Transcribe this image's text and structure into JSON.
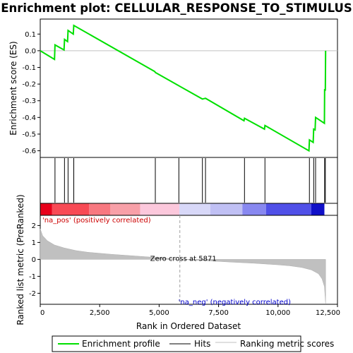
{
  "chart_data": {
    "type": "line",
    "title": "Enrichment plot: CELLULAR_RESPONSE_TO_STIMULUS",
    "enrichment_panel": {
      "ylabel": "Enrichment score (ES)",
      "ylim": [
        -0.64,
        0.19
      ],
      "yticks": [
        "0.1",
        "0.0",
        "-0.1",
        "-0.2",
        "-0.3",
        "-0.4",
        "-0.5",
        "-0.6"
      ],
      "ytick_values": [
        0.1,
        0.0,
        -0.1,
        -0.2,
        -0.3,
        -0.4,
        -0.5,
        -0.6
      ],
      "series_name": "Enrichment profile",
      "color": "#00e000",
      "points": [
        [
          0,
          0.0
        ],
        [
          600,
          -0.052
        ],
        [
          620,
          0.035
        ],
        [
          1000,
          0.005
        ],
        [
          1020,
          0.068
        ],
        [
          1150,
          0.055
        ],
        [
          1170,
          0.122
        ],
        [
          1390,
          0.1
        ],
        [
          1410,
          0.152
        ],
        [
          4820,
          -0.125
        ],
        [
          4840,
          -0.13
        ],
        [
          5830,
          -0.21
        ],
        [
          6820,
          -0.29
        ],
        [
          6950,
          -0.285
        ],
        [
          8570,
          -0.42
        ],
        [
          8590,
          -0.405
        ],
        [
          9430,
          -0.47
        ],
        [
          9450,
          -0.448
        ],
        [
          11300,
          -0.6
        ],
        [
          11320,
          -0.535
        ],
        [
          11480,
          -0.55
        ],
        [
          11500,
          -0.47
        ],
        [
          11560,
          -0.475
        ],
        [
          11580,
          -0.4
        ],
        [
          11950,
          -0.435
        ],
        [
          11960,
          -0.23
        ],
        [
          11990,
          -0.24
        ],
        [
          12000,
          0.0
        ]
      ]
    },
    "hits": [
      620,
      1020,
      1170,
      1410,
      4840,
      5830,
      6820,
      6950,
      8590,
      9450,
      11320,
      11500,
      11580,
      11960,
      11990
    ],
    "ranking_bar": {
      "segments": [
        {
          "from": 0,
          "to": 500,
          "color": "#e8001a"
        },
        {
          "from": 500,
          "to": 2050,
          "color": "#f84a55"
        },
        {
          "from": 2050,
          "to": 2950,
          "color": "#f87880"
        },
        {
          "from": 2950,
          "to": 4200,
          "color": "#f8a0a8"
        },
        {
          "from": 4200,
          "to": 5850,
          "color": "#fcc8dc"
        },
        {
          "from": 5850,
          "to": 7150,
          "color": "#d8d8f8"
        },
        {
          "from": 7150,
          "to": 8500,
          "color": "#c0c0f4"
        },
        {
          "from": 8500,
          "to": 9500,
          "color": "#8888f0"
        },
        {
          "from": 9500,
          "to": 11400,
          "color": "#5050e8"
        },
        {
          "from": 11400,
          "to": 11950,
          "color": "#1010c8"
        }
      ]
    },
    "ranking_panel": {
      "ylabel": "Ranked list metric (PreRanked)",
      "ylim": [
        -2.65,
        2.6
      ],
      "yticks": [
        "2",
        "1",
        "0",
        "-1",
        "-2"
      ],
      "ytick_values": [
        2,
        1,
        0,
        -1,
        -2
      ],
      "profile": [
        [
          0,
          1.8
        ],
        [
          100,
          1.4
        ],
        [
          300,
          1.1
        ],
        [
          600,
          0.85
        ],
        [
          1000,
          0.68
        ],
        [
          1500,
          0.52
        ],
        [
          2000,
          0.42
        ],
        [
          3000,
          0.3
        ],
        [
          4000,
          0.2
        ],
        [
          5000,
          0.1
        ],
        [
          5871,
          0.0
        ],
        [
          7000,
          -0.08
        ],
        [
          8000,
          -0.16
        ],
        [
          9000,
          -0.23
        ],
        [
          10000,
          -0.32
        ],
        [
          10500,
          -0.38
        ],
        [
          11000,
          -0.48
        ],
        [
          11400,
          -0.62
        ],
        [
          11700,
          -0.85
        ],
        [
          11850,
          -1.15
        ],
        [
          11950,
          -1.6
        ],
        [
          12000,
          -2.6
        ]
      ],
      "zero_cross_label": "Zero cross at 5871",
      "zero_cross_at": 5871,
      "pos_label": "'na_pos' (positively correlated)",
      "neg_label": "'na_neg' (negatively correlated)"
    },
    "xlabel": "Rank in Ordered Dataset",
    "xlim": [
      0,
      12500
    ],
    "xticks": [
      "0",
      "2,500",
      "5,000",
      "7,500",
      "10,000",
      "12,500"
    ],
    "xtick_values": [
      0,
      2500,
      5000,
      7500,
      10000,
      12500
    ],
    "legend": {
      "placement": "bottom",
      "items": [
        {
          "label": "Enrichment profile",
          "color": "#00e000"
        },
        {
          "label": "Hits",
          "color": "#000000"
        },
        {
          "label": "Ranking metric scores",
          "color": "#c0c0c0"
        }
      ]
    }
  }
}
